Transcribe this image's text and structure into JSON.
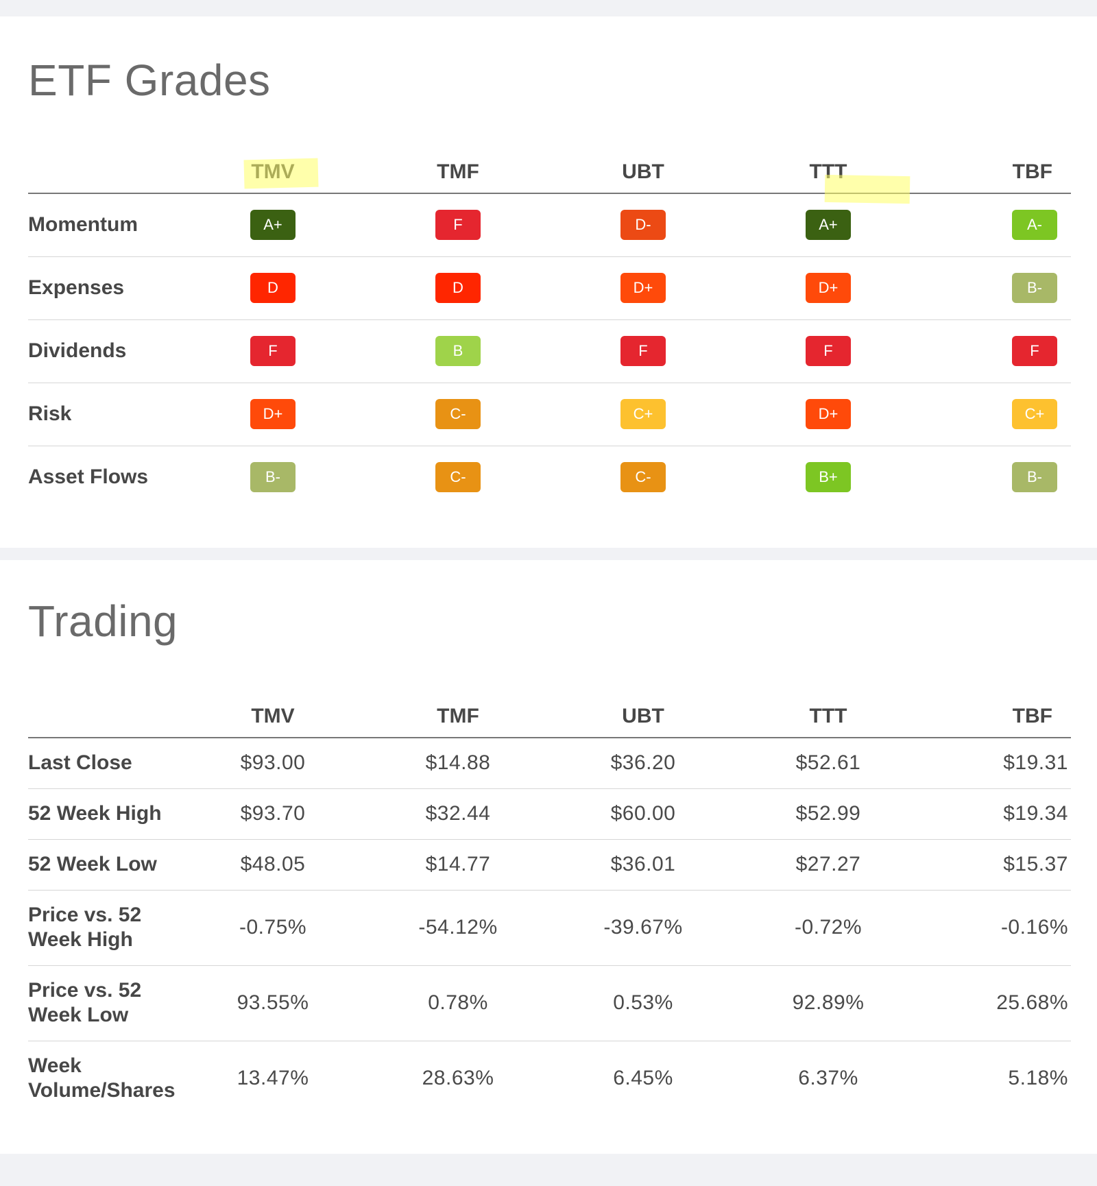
{
  "grades": {
    "title": "ETF Grades",
    "columns": [
      "TMV",
      "TMF",
      "UBT",
      "TTT",
      "TBF"
    ],
    "rows": [
      {
        "label": "Momentum",
        "grades": [
          "A+",
          "F",
          "D-",
          "A+",
          "A-"
        ],
        "colors": [
          "#3b6112",
          "#e5262f",
          "#ec4a14",
          "#3b6112",
          "#7dc623"
        ]
      },
      {
        "label": "Expenses",
        "grades": [
          "D",
          "D",
          "D+",
          "D+",
          "B-"
        ],
        "colors": [
          "#ff2600",
          "#ff2600",
          "#ff4a0a",
          "#ff4a0a",
          "#a8b867"
        ]
      },
      {
        "label": "Dividends",
        "grades": [
          "F",
          "B",
          "F",
          "F",
          "F"
        ],
        "colors": [
          "#e5262f",
          "#9fd34a",
          "#e5262f",
          "#e5262f",
          "#e5262f"
        ]
      },
      {
        "label": "Risk",
        "grades": [
          "D+",
          "C-",
          "C+",
          "D+",
          "C+"
        ],
        "colors": [
          "#ff4a0a",
          "#e89214",
          "#fdc12f",
          "#ff4a0a",
          "#fdc12f"
        ]
      },
      {
        "label": "Asset Flows",
        "grades": [
          "B-",
          "C-",
          "C-",
          "B+",
          "B-"
        ],
        "colors": [
          "#a8b867",
          "#e89214",
          "#e89214",
          "#7dc623",
          "#a8b867"
        ]
      }
    ]
  },
  "trading": {
    "title": "Trading",
    "columns": [
      "TMV",
      "TMF",
      "UBT",
      "TTT",
      "TBF"
    ],
    "rows": [
      {
        "label": "Last Close",
        "values": [
          "$93.00",
          "$14.88",
          "$36.20",
          "$52.61",
          "$19.31"
        ]
      },
      {
        "label": "52 Week High",
        "values": [
          "$93.70",
          "$32.44",
          "$60.00",
          "$52.99",
          "$19.34"
        ]
      },
      {
        "label": "52 Week Low",
        "values": [
          "$48.05",
          "$14.77",
          "$36.01",
          "$27.27",
          "$15.37"
        ]
      },
      {
        "label_line1": "Price vs. 52",
        "label_line2": "Week High",
        "values": [
          "-0.75%",
          "-54.12%",
          "-39.67%",
          "-0.72%",
          "-0.16%"
        ]
      },
      {
        "label_line1": "Price vs. 52",
        "label_line2": "Week Low",
        "values": [
          "93.55%",
          "0.78%",
          "0.53%",
          "92.89%",
          "25.68%"
        ]
      },
      {
        "label_line1": "Week",
        "label_line2": "Volume/Shares",
        "values": [
          "13.47%",
          "28.63%",
          "6.45%",
          "6.37%",
          "5.18%"
        ]
      }
    ]
  },
  "highlight_color": "#ffff66"
}
